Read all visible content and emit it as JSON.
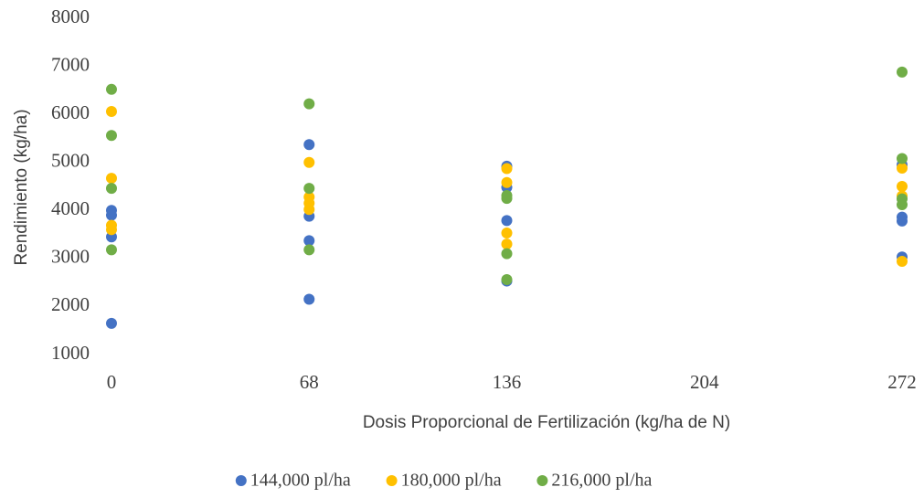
{
  "chart_data": {
    "type": "scatter",
    "xlabel": "Dosis Proporcional de Fertilización (kg/ha de N)",
    "ylabel": "Rendimiento (kg/ha)",
    "xlim": [
      0,
      272
    ],
    "xticks": [
      0,
      68,
      136,
      204,
      272
    ],
    "ylim": [
      1000,
      8000
    ],
    "yticks": [
      1000,
      2000,
      3000,
      4000,
      5000,
      6000,
      7000,
      8000
    ],
    "grid": false,
    "legend": "bottom",
    "series": [
      {
        "name": "144,000 pl/ha",
        "color": "#4472c4",
        "x": [
          0,
          0,
          0,
          0,
          68,
          68,
          68,
          68,
          136,
          136,
          136,
          136,
          272,
          272,
          272,
          272
        ],
        "values": [
          4000,
          3900,
          3450,
          1650,
          5370,
          3880,
          3370,
          2150,
          4920,
          4480,
          3790,
          2530,
          4950,
          3860,
          3780,
          3030
        ]
      },
      {
        "name": "180,000 pl/ha",
        "color": "#ffc000",
        "x": [
          0,
          0,
          0,
          0,
          68,
          68,
          68,
          68,
          136,
          136,
          136,
          136,
          272,
          272,
          272,
          272
        ],
        "values": [
          6060,
          4670,
          3690,
          3600,
          5000,
          4280,
          4150,
          4020,
          4870,
          4580,
          3530,
          3300,
          4880,
          4500,
          4300,
          2940
        ]
      },
      {
        "name": "216,000 pl/ha",
        "color": "#70ad47",
        "x": [
          0,
          0,
          0,
          0,
          68,
          68,
          68,
          136,
          136,
          136,
          136,
          272,
          272,
          272,
          272
        ],
        "values": [
          6520,
          5560,
          4460,
          3180,
          6220,
          4460,
          3180,
          4310,
          4250,
          3100,
          2560,
          6880,
          5080,
          4240,
          4120
        ]
      }
    ]
  }
}
